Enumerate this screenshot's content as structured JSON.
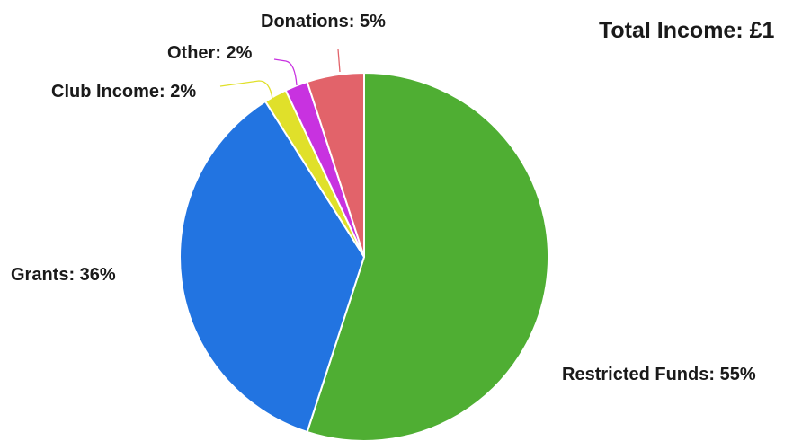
{
  "total_label": "Total Income: £1",
  "colors": {
    "restricted_funds": "#4fae33",
    "grants": "#2274e1",
    "club_income": "#e0e02a",
    "other": "#c832e0",
    "donations": "#e2636a"
  },
  "chart_data": {
    "type": "pie",
    "title": "Total Income: £1",
    "slices": [
      {
        "name": "Restricted Funds",
        "value": 55,
        "label": "Restricted Funds: 55%",
        "color": "#4fae33"
      },
      {
        "name": "Grants",
        "value": 36,
        "label": "Grants: 36%",
        "color": "#2274e1"
      },
      {
        "name": "Club Income",
        "value": 2,
        "label": "Club Income: 2%",
        "color": "#e0e02a"
      },
      {
        "name": "Other",
        "value": 2,
        "label": "Other: 2%",
        "color": "#c832e0"
      },
      {
        "name": "Donations",
        "value": 5,
        "label": "Donations: 5%",
        "color": "#e2636a"
      }
    ]
  }
}
